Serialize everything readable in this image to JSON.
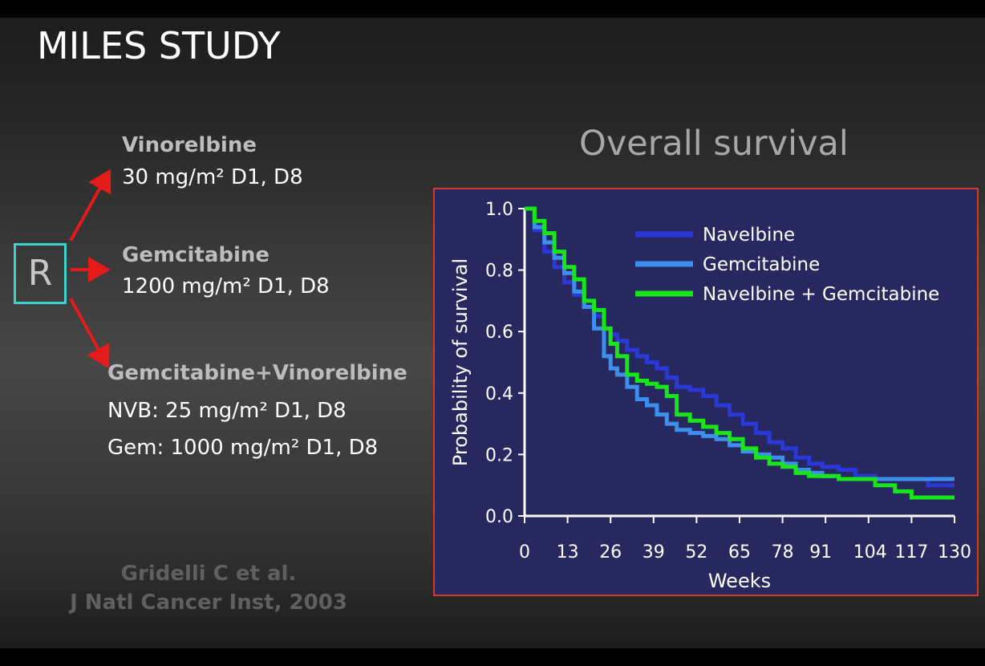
{
  "slide": {
    "title": "MILES STUDY",
    "randomization_label": "R",
    "arms": [
      {
        "name": "Vinorelbine",
        "doses": [
          "30 mg/m²    D1, D8"
        ]
      },
      {
        "name": "Gemcitabine",
        "doses": [
          "1200 mg/m²  D1, D8"
        ]
      },
      {
        "name": "Gemcitabine+Vinorelbine",
        "doses": [
          "NVB: 25 mg/m²       D1, D8",
          "Gem: 1000 mg/m²  D1, D8"
        ]
      }
    ],
    "reference": [
      "Gridelli C et al.",
      "J Natl Cancer Inst, 2003"
    ],
    "arrow_color": "#e41b1b"
  },
  "chart_data": {
    "type": "line",
    "title": "Overall survival",
    "xlabel": "Weeks",
    "ylabel": "Probability of survival",
    "xlim": [
      0,
      130
    ],
    "ylim": [
      0,
      1.0
    ],
    "xticks": [
      0,
      13,
      26,
      39,
      52,
      65,
      78,
      91,
      104,
      117,
      130
    ],
    "yticks": [
      "0.0",
      "0.2",
      "0.4",
      "0.6",
      "0.8",
      "1.0"
    ],
    "legend_position": "top-right",
    "background": "#272860",
    "series": [
      {
        "name": "Navelbine",
        "color": "#2b38d8",
        "points": [
          [
            0,
            1.0
          ],
          [
            3,
            0.93
          ],
          [
            6,
            0.86
          ],
          [
            9,
            0.81
          ],
          [
            12,
            0.76
          ],
          [
            15,
            0.72
          ],
          [
            18,
            0.68
          ],
          [
            21,
            0.65
          ],
          [
            24,
            0.61
          ],
          [
            26,
            0.59
          ],
          [
            28,
            0.57
          ],
          [
            31,
            0.54
          ],
          [
            34,
            0.52
          ],
          [
            37,
            0.5
          ],
          [
            40,
            0.48
          ],
          [
            43,
            0.45
          ],
          [
            46,
            0.42
          ],
          [
            50,
            0.41
          ],
          [
            54,
            0.39
          ],
          [
            58,
            0.36
          ],
          [
            62,
            0.33
          ],
          [
            66,
            0.3
          ],
          [
            70,
            0.27
          ],
          [
            74,
            0.24
          ],
          [
            78,
            0.22
          ],
          [
            82,
            0.19
          ],
          [
            86,
            0.17
          ],
          [
            90,
            0.16
          ],
          [
            95,
            0.15
          ],
          [
            100,
            0.13
          ],
          [
            106,
            0.12
          ],
          [
            112,
            0.12
          ],
          [
            117,
            0.12
          ],
          [
            122,
            0.1
          ],
          [
            130,
            0.1
          ]
        ]
      },
      {
        "name": "Gemcitabine",
        "color": "#3d8fee",
        "points": [
          [
            0,
            1.0
          ],
          [
            3,
            0.94
          ],
          [
            6,
            0.89
          ],
          [
            9,
            0.84
          ],
          [
            12,
            0.79
          ],
          [
            15,
            0.73
          ],
          [
            18,
            0.68
          ],
          [
            21,
            0.61
          ],
          [
            24,
            0.52
          ],
          [
            26,
            0.48
          ],
          [
            28,
            0.46
          ],
          [
            31,
            0.42
          ],
          [
            34,
            0.38
          ],
          [
            37,
            0.36
          ],
          [
            40,
            0.33
          ],
          [
            43,
            0.3
          ],
          [
            46,
            0.28
          ],
          [
            50,
            0.27
          ],
          [
            54,
            0.26
          ],
          [
            58,
            0.25
          ],
          [
            62,
            0.23
          ],
          [
            66,
            0.21
          ],
          [
            70,
            0.2
          ],
          [
            74,
            0.19
          ],
          [
            78,
            0.17
          ],
          [
            82,
            0.15
          ],
          [
            86,
            0.14
          ],
          [
            90,
            0.13
          ],
          [
            95,
            0.12
          ],
          [
            100,
            0.12
          ],
          [
            110,
            0.12
          ],
          [
            120,
            0.12
          ],
          [
            130,
            0.12
          ]
        ]
      },
      {
        "name": "Navelbine + Gemcitabine",
        "color": "#19e619",
        "points": [
          [
            0,
            1.0
          ],
          [
            3,
            0.96
          ],
          [
            6,
            0.92
          ],
          [
            9,
            0.86
          ],
          [
            12,
            0.81
          ],
          [
            15,
            0.77
          ],
          [
            18,
            0.7
          ],
          [
            21,
            0.67
          ],
          [
            24,
            0.61
          ],
          [
            26,
            0.56
          ],
          [
            28,
            0.52
          ],
          [
            31,
            0.46
          ],
          [
            34,
            0.44
          ],
          [
            37,
            0.43
          ],
          [
            40,
            0.42
          ],
          [
            43,
            0.39
          ],
          [
            46,
            0.33
          ],
          [
            50,
            0.31
          ],
          [
            54,
            0.29
          ],
          [
            58,
            0.27
          ],
          [
            62,
            0.25
          ],
          [
            66,
            0.22
          ],
          [
            70,
            0.19
          ],
          [
            74,
            0.17
          ],
          [
            78,
            0.16
          ],
          [
            82,
            0.14
          ],
          [
            86,
            0.13
          ],
          [
            90,
            0.13
          ],
          [
            95,
            0.12
          ],
          [
            100,
            0.12
          ],
          [
            106,
            0.1
          ],
          [
            112,
            0.08
          ],
          [
            117,
            0.06
          ],
          [
            122,
            0.06
          ],
          [
            130,
            0.06
          ]
        ]
      }
    ]
  }
}
